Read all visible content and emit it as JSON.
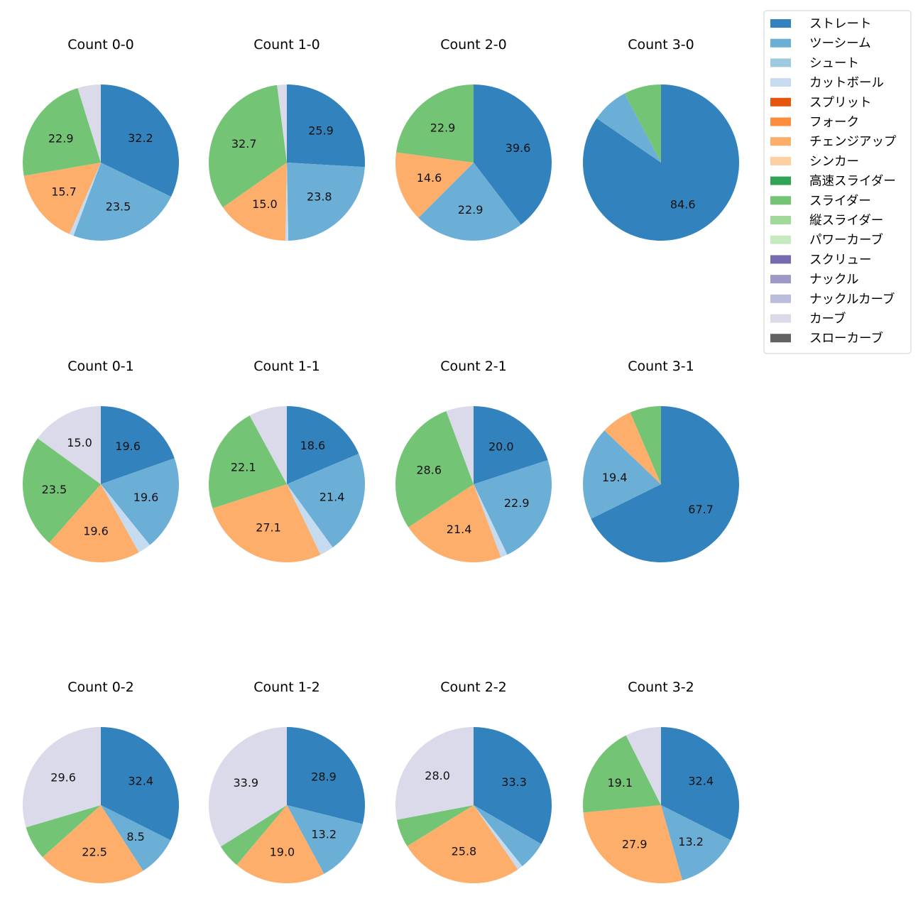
{
  "chart_data": {
    "type": "pie",
    "start": "12 o'clock, clockwise",
    "legend": {
      "placement": "top-right",
      "entries": [
        {
          "name": "ストレート",
          "color": "#3182bd"
        },
        {
          "name": "ツーシーム",
          "color": "#6baed6"
        },
        {
          "name": "シュート",
          "color": "#9ecae1"
        },
        {
          "name": "カットボール",
          "color": "#c6dbef"
        },
        {
          "name": "スプリット",
          "color": "#e6550d"
        },
        {
          "name": "フォーク",
          "color": "#fd8d3c"
        },
        {
          "name": "チェンジアップ",
          "color": "#fdae6b"
        },
        {
          "name": "シンカー",
          "color": "#fdd0a2"
        },
        {
          "name": "高速スライダー",
          "color": "#31a354"
        },
        {
          "name": "スライダー",
          "color": "#74c476"
        },
        {
          "name": "縦スライダー",
          "color": "#a1d99b"
        },
        {
          "name": "パワーカーブ",
          "color": "#c7e9c0"
        },
        {
          "name": "スクリュー",
          "color": "#756bb1"
        },
        {
          "name": "ナックル",
          "color": "#9e9ac8"
        },
        {
          "name": "ナックルカーブ",
          "color": "#bcbddc"
        },
        {
          "name": "カーブ",
          "color": "#dadaeb"
        },
        {
          "name": "スローカーブ",
          "color": "#636363"
        }
      ]
    },
    "pies": [
      {
        "title": "Count 0-0",
        "slices": [
          {
            "name": "ストレート",
            "value": 32.2,
            "label": "32.2"
          },
          {
            "name": "ツーシーム",
            "value": 23.5,
            "label": "23.5"
          },
          {
            "name": "カットボール",
            "value": 0.9,
            "label": ""
          },
          {
            "name": "チェンジアップ",
            "value": 15.7,
            "label": "15.7"
          },
          {
            "name": "スライダー",
            "value": 22.9,
            "label": "22.9"
          },
          {
            "name": "カーブ",
            "value": 4.8,
            "label": ""
          }
        ]
      },
      {
        "title": "Count 1-0",
        "slices": [
          {
            "name": "ストレート",
            "value": 25.9,
            "label": "25.9"
          },
          {
            "name": "ツーシーム",
            "value": 23.8,
            "label": "23.8"
          },
          {
            "name": "カットボール",
            "value": 0.6,
            "label": ""
          },
          {
            "name": "チェンジアップ",
            "value": 15.0,
            "label": "15.0"
          },
          {
            "name": "スライダー",
            "value": 32.7,
            "label": "32.7"
          },
          {
            "name": "カーブ",
            "value": 2.0,
            "label": ""
          }
        ]
      },
      {
        "title": "Count 2-0",
        "slices": [
          {
            "name": "ストレート",
            "value": 39.6,
            "label": "39.6"
          },
          {
            "name": "ツーシーム",
            "value": 22.9,
            "label": "22.9"
          },
          {
            "name": "チェンジアップ",
            "value": 14.6,
            "label": "14.6"
          },
          {
            "name": "スライダー",
            "value": 22.9,
            "label": "22.9"
          }
        ]
      },
      {
        "title": "Count 3-0",
        "slices": [
          {
            "name": "ストレート",
            "value": 84.6,
            "label": "84.6"
          },
          {
            "name": "ツーシーム",
            "value": 7.7,
            "label": ""
          },
          {
            "name": "スライダー",
            "value": 7.7,
            "label": ""
          }
        ]
      },
      {
        "title": "Count 0-1",
        "slices": [
          {
            "name": "ストレート",
            "value": 19.6,
            "label": "19.6"
          },
          {
            "name": "ツーシーム",
            "value": 19.6,
            "label": "19.6"
          },
          {
            "name": "カットボール",
            "value": 2.7,
            "label": ""
          },
          {
            "name": "チェンジアップ",
            "value": 19.6,
            "label": "19.6"
          },
          {
            "name": "スライダー",
            "value": 23.5,
            "label": "23.5"
          },
          {
            "name": "カーブ",
            "value": 15.0,
            "label": "15.0"
          }
        ]
      },
      {
        "title": "Count 1-1",
        "slices": [
          {
            "name": "ストレート",
            "value": 18.6,
            "label": "18.6"
          },
          {
            "name": "ツーシーム",
            "value": 21.4,
            "label": "21.4"
          },
          {
            "name": "カットボール",
            "value": 2.9,
            "label": ""
          },
          {
            "name": "チェンジアップ",
            "value": 27.1,
            "label": "27.1"
          },
          {
            "name": "スライダー",
            "value": 22.1,
            "label": "22.1"
          },
          {
            "name": "カーブ",
            "value": 7.9,
            "label": ""
          }
        ]
      },
      {
        "title": "Count 2-1",
        "slices": [
          {
            "name": "ストレート",
            "value": 20.0,
            "label": "20.0"
          },
          {
            "name": "ツーシーム",
            "value": 22.9,
            "label": "22.9"
          },
          {
            "name": "カットボール",
            "value": 1.4,
            "label": ""
          },
          {
            "name": "チェンジアップ",
            "value": 21.4,
            "label": "21.4"
          },
          {
            "name": "スライダー",
            "value": 28.6,
            "label": "28.6"
          },
          {
            "name": "カーブ",
            "value": 5.7,
            "label": ""
          }
        ]
      },
      {
        "title": "Count 3-1",
        "slices": [
          {
            "name": "ストレート",
            "value": 67.7,
            "label": "67.7"
          },
          {
            "name": "ツーシーム",
            "value": 19.4,
            "label": "19.4"
          },
          {
            "name": "チェンジアップ",
            "value": 6.45,
            "label": ""
          },
          {
            "name": "スライダー",
            "value": 6.45,
            "label": ""
          }
        ]
      },
      {
        "title": "Count 0-2",
        "slices": [
          {
            "name": "ストレート",
            "value": 32.4,
            "label": "32.4"
          },
          {
            "name": "ツーシーム",
            "value": 8.5,
            "label": "8.5"
          },
          {
            "name": "チェンジアップ",
            "value": 22.5,
            "label": "22.5"
          },
          {
            "name": "スライダー",
            "value": 7.0,
            "label": ""
          },
          {
            "name": "カーブ",
            "value": 29.6,
            "label": "29.6"
          }
        ]
      },
      {
        "title": "Count 1-2",
        "slices": [
          {
            "name": "ストレート",
            "value": 28.9,
            "label": "28.9"
          },
          {
            "name": "ツーシーム",
            "value": 13.2,
            "label": "13.2"
          },
          {
            "name": "チェンジアップ",
            "value": 19.0,
            "label": "19.0"
          },
          {
            "name": "スライダー",
            "value": 5.0,
            "label": ""
          },
          {
            "name": "カーブ",
            "value": 33.9,
            "label": "33.9"
          }
        ]
      },
      {
        "title": "Count 2-2",
        "slices": [
          {
            "name": "ストレート",
            "value": 33.3,
            "label": "33.3"
          },
          {
            "name": "ツーシーム",
            "value": 6.0,
            "label": ""
          },
          {
            "name": "カットボール",
            "value": 1.1,
            "label": ""
          },
          {
            "name": "チェンジアップ",
            "value": 25.8,
            "label": "25.8"
          },
          {
            "name": "スライダー",
            "value": 5.8,
            "label": ""
          },
          {
            "name": "カーブ",
            "value": 28.0,
            "label": "28.0"
          }
        ]
      },
      {
        "title": "Count 3-2",
        "slices": [
          {
            "name": "ストレート",
            "value": 32.4,
            "label": "32.4"
          },
          {
            "name": "ツーシーム",
            "value": 13.2,
            "label": "13.2"
          },
          {
            "name": "チェンジアップ",
            "value": 27.9,
            "label": "27.9"
          },
          {
            "name": "スライダー",
            "value": 19.1,
            "label": "19.1"
          },
          {
            "name": "カーブ",
            "value": 7.4,
            "label": ""
          }
        ]
      }
    ]
  }
}
